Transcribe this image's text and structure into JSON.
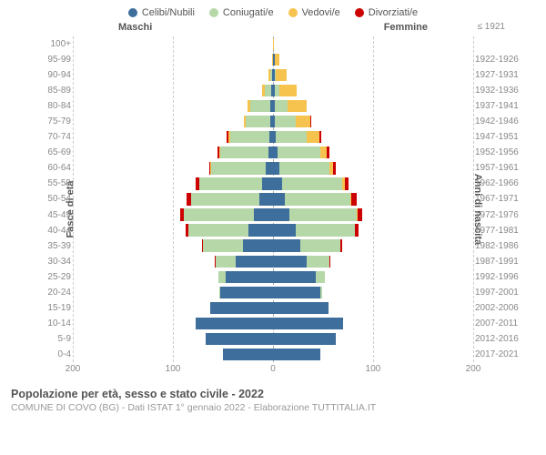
{
  "legend": [
    {
      "label": "Celibi/Nubili",
      "color": "#3d6e9c"
    },
    {
      "label": "Coniugati/e",
      "color": "#b6d7a8"
    },
    {
      "label": "Vedovi/e",
      "color": "#f6c34f"
    },
    {
      "label": "Divorziati/e",
      "color": "#cc0000"
    }
  ],
  "headers": {
    "male": "Maschi",
    "female": "Femmine",
    "ref": "≤ 1921"
  },
  "axis": {
    "left_title": "Fasce di età",
    "right_title": "Anni di nascita"
  },
  "title": "Popolazione per età, sesso e stato civile - 2022",
  "subtitle": "COMUNE DI COVO (BG) - Dati ISTAT 1° gennaio 2022 - Elaborazione TUTTITALIA.IT",
  "xmax": 200,
  "xticks_left": [
    200,
    100,
    0
  ],
  "xticks_right": [
    0,
    100,
    200
  ],
  "chart": {
    "type": "population-pyramid",
    "background_color": "#ffffff",
    "grid_color": "#cccccc",
    "center_color": "#aaaaaa",
    "bar_height_ratio": 0.78,
    "label_fontsize": 10,
    "label_color": "#888888",
    "title_fontsize": 12.5,
    "title_color": "#555555"
  },
  "rows": [
    {
      "age": "100+",
      "birth": "",
      "m": [
        0,
        0,
        0,
        0
      ],
      "f": [
        0,
        0,
        1,
        0
      ]
    },
    {
      "age": "95-99",
      "birth": "1922-1926",
      "m": [
        0,
        0,
        2,
        0
      ],
      "f": [
        3,
        1,
        8,
        0
      ]
    },
    {
      "age": "90-94",
      "birth": "1927-1931",
      "m": [
        2,
        4,
        3,
        0
      ],
      "f": [
        3,
        3,
        22,
        0
      ]
    },
    {
      "age": "85-89",
      "birth": "1932-1936",
      "m": [
        3,
        14,
        4,
        0
      ],
      "f": [
        3,
        10,
        35,
        0
      ]
    },
    {
      "age": "80-84",
      "birth": "1937-1941",
      "m": [
        5,
        40,
        6,
        0
      ],
      "f": [
        4,
        25,
        38,
        0
      ]
    },
    {
      "age": "75-79",
      "birth": "1942-1946",
      "m": [
        5,
        50,
        4,
        0
      ],
      "f": [
        4,
        42,
        28,
        1
      ]
    },
    {
      "age": "70-74",
      "birth": "1947-1951",
      "m": [
        7,
        78,
        5,
        3
      ],
      "f": [
        6,
        62,
        24,
        4
      ]
    },
    {
      "age": "65-69",
      "birth": "1952-1956",
      "m": [
        10,
        95,
        3,
        3
      ],
      "f": [
        9,
        85,
        14,
        5
      ]
    },
    {
      "age": "60-64",
      "birth": "1957-1961",
      "m": [
        14,
        110,
        2,
        2
      ],
      "f": [
        12,
        100,
        8,
        5
      ]
    },
    {
      "age": "55-59",
      "birth": "1962-1966",
      "m": [
        22,
        125,
        1,
        6
      ],
      "f": [
        18,
        120,
        5,
        8
      ]
    },
    {
      "age": "50-54",
      "birth": "1967-1971",
      "m": [
        28,
        135,
        1,
        9
      ],
      "f": [
        24,
        130,
        3,
        10
      ]
    },
    {
      "age": "45-49",
      "birth": "1972-1976",
      "m": [
        38,
        140,
        0,
        8
      ],
      "f": [
        32,
        135,
        2,
        9
      ]
    },
    {
      "age": "40-44",
      "birth": "1977-1981",
      "m": [
        50,
        120,
        0,
        5
      ],
      "f": [
        45,
        118,
        1,
        7
      ]
    },
    {
      "age": "35-39",
      "birth": "1982-1986",
      "m": [
        60,
        80,
        0,
        2
      ],
      "f": [
        55,
        80,
        0,
        3
      ]
    },
    {
      "age": "30-34",
      "birth": "1987-1991",
      "m": [
        75,
        40,
        0,
        1
      ],
      "f": [
        68,
        45,
        0,
        2
      ]
    },
    {
      "age": "25-29",
      "birth": "1992-1996",
      "m": [
        95,
        15,
        0,
        0
      ],
      "f": [
        85,
        18,
        0,
        0
      ]
    },
    {
      "age": "20-24",
      "birth": "1997-2001",
      "m": [
        105,
        3,
        0,
        0
      ],
      "f": [
        95,
        4,
        0,
        0
      ]
    },
    {
      "age": "15-19",
      "birth": "2002-2006",
      "m": [
        125,
        0,
        0,
        0
      ],
      "f": [
        110,
        0,
        0,
        0
      ]
    },
    {
      "age": "10-14",
      "birth": "2007-2011",
      "m": [
        155,
        0,
        0,
        0
      ],
      "f": [
        140,
        0,
        0,
        0
      ]
    },
    {
      "age": "5-9",
      "birth": "2012-2016",
      "m": [
        135,
        0,
        0,
        0
      ],
      "f": [
        125,
        0,
        0,
        0
      ]
    },
    {
      "age": "0-4",
      "birth": "2017-2021",
      "m": [
        100,
        0,
        0,
        0
      ],
      "f": [
        95,
        0,
        0,
        0
      ]
    }
  ]
}
